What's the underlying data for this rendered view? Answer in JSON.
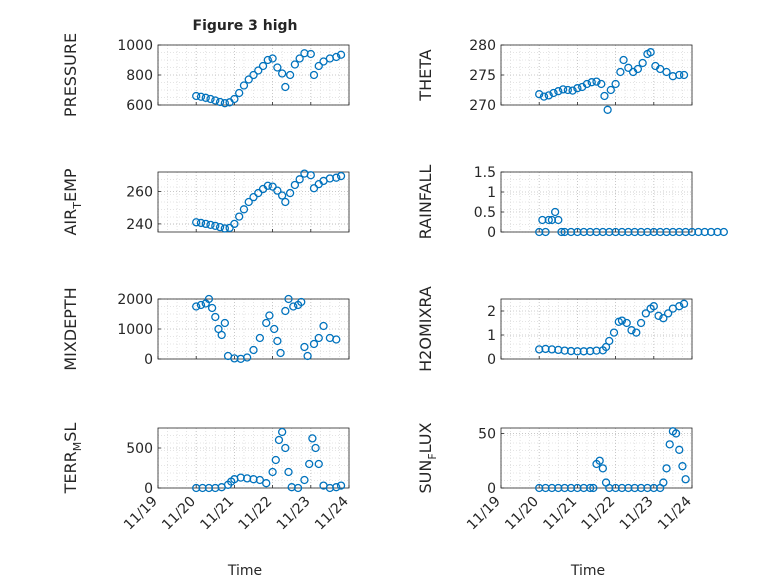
{
  "figure": {
    "title": "Figure 3 high",
    "xlabel": "Time",
    "xticklabels": [
      "11/19",
      "11/20",
      "11/21",
      "11/22",
      "11/23",
      "11/24"
    ],
    "marker_color": "#0072BD"
  },
  "chart_data": [
    {
      "type": "scatter",
      "name": "pressure",
      "title": "Figure 3 high",
      "ylabel": "PRESSURE",
      "xlabel": "",
      "x_range": [
        "11/19",
        "11/24"
      ],
      "ylim": [
        600,
        1000
      ],
      "yticks": [
        600,
        800,
        1000
      ],
      "yticklabels": [
        "600",
        "800",
        "1000"
      ],
      "grid": true,
      "points": [
        [
          "11/20 00:00",
          660
        ],
        [
          "11/20 03:00",
          655
        ],
        [
          "11/20 06:00",
          648
        ],
        [
          "11/20 09:00",
          640
        ],
        [
          "11/20 12:00",
          630
        ],
        [
          "11/20 15:00",
          620
        ],
        [
          "11/20 18:00",
          612
        ],
        [
          "11/20 21:00",
          618
        ],
        [
          "11/21 00:00",
          640
        ],
        [
          "11/21 03:00",
          680
        ],
        [
          "11/21 06:00",
          730
        ],
        [
          "11/21 09:00",
          770
        ],
        [
          "11/21 12:00",
          800
        ],
        [
          "11/21 15:00",
          830
        ],
        [
          "11/21 18:00",
          860
        ],
        [
          "11/21 21:00",
          900
        ],
        [
          "11/22 00:00",
          910
        ],
        [
          "11/22 03:00",
          850
        ],
        [
          "11/22 06:00",
          810
        ],
        [
          "11/22 08:00",
          720
        ],
        [
          "11/22 11:00",
          800
        ],
        [
          "11/22 14:00",
          870
        ],
        [
          "11/22 17:00",
          910
        ],
        [
          "11/22 20:00",
          945
        ],
        [
          "11/23 00:00",
          940
        ],
        [
          "11/23 02:00",
          800
        ],
        [
          "11/23 05:00",
          860
        ],
        [
          "11/23 08:00",
          890
        ],
        [
          "11/23 12:00",
          910
        ],
        [
          "11/23 16:00",
          920
        ],
        [
          "11/23 19:00",
          935
        ]
      ]
    },
    {
      "type": "scatter",
      "name": "theta",
      "ylabel": "THETA",
      "xlabel": "",
      "x_range": [
        "11/19",
        "11/24"
      ],
      "ylim": [
        270,
        280
      ],
      "yticks": [
        270,
        275,
        280
      ],
      "yticklabels": [
        "270",
        "275",
        "280"
      ],
      "grid": true,
      "points": [
        [
          "11/20 00:00",
          271.8
        ],
        [
          "11/20 03:00",
          271.4
        ],
        [
          "11/20 06:00",
          271.6
        ],
        [
          "11/20 09:00",
          272.0
        ],
        [
          "11/20 12:00",
          272.3
        ],
        [
          "11/20 15:00",
          272.6
        ],
        [
          "11/20 18:00",
          272.5
        ],
        [
          "11/20 21:00",
          272.4
        ],
        [
          "11/21 00:00",
          272.8
        ],
        [
          "11/21 03:00",
          273.0
        ],
        [
          "11/21 06:00",
          273.5
        ],
        [
          "11/21 09:00",
          273.8
        ],
        [
          "11/21 12:00",
          273.9
        ],
        [
          "11/21 15:00",
          273.5
        ],
        [
          "11/21 17:00",
          271.5
        ],
        [
          "11/21 19:00",
          269.2
        ],
        [
          "11/21 21:00",
          272.5
        ],
        [
          "11/22 00:00",
          273.5
        ],
        [
          "11/22 03:00",
          275.5
        ],
        [
          "11/22 05:00",
          277.5
        ],
        [
          "11/22 08:00",
          276.2
        ],
        [
          "11/22 11:00",
          275.5
        ],
        [
          "11/22 14:00",
          276.0
        ],
        [
          "11/22 17:00",
          277.0
        ],
        [
          "11/22 20:00",
          278.5
        ],
        [
          "11/22 22:00",
          278.8
        ],
        [
          "11/23 01:00",
          276.5
        ],
        [
          "11/23 04:00",
          276.0
        ],
        [
          "11/23 08:00",
          275.5
        ],
        [
          "11/23 12:00",
          274.8
        ],
        [
          "11/23 16:00",
          275.0
        ],
        [
          "11/23 19:00",
          275.0
        ]
      ]
    },
    {
      "type": "scatter",
      "name": "air-temp",
      "ylabel": "AIR_TEMP",
      "ylabel_display": {
        "main": "AIR",
        "sub": "T",
        "rest": "EMP"
      },
      "xlabel": "",
      "x_range": [
        "11/19",
        "11/24"
      ],
      "ylim": [
        235,
        272
      ],
      "yticks": [
        240,
        260
      ],
      "yticklabels": [
        "240",
        "260"
      ],
      "grid": true,
      "points": [
        [
          "11/20 00:00",
          241.0
        ],
        [
          "11/20 03:00",
          240.6
        ],
        [
          "11/20 06:00",
          240.0
        ],
        [
          "11/20 09:00",
          239.4
        ],
        [
          "11/20 12:00",
          238.8
        ],
        [
          "11/20 15:00",
          238.0
        ],
        [
          "11/20 18:00",
          237.2
        ],
        [
          "11/20 21:00",
          237.5
        ],
        [
          "11/21 00:00",
          240.0
        ],
        [
          "11/21 03:00",
          244.5
        ],
        [
          "11/21 06:00",
          249.0
        ],
        [
          "11/21 09:00",
          253.5
        ],
        [
          "11/21 12:00",
          256.5
        ],
        [
          "11/21 15:00",
          259.0
        ],
        [
          "11/21 18:00",
          261.5
        ],
        [
          "11/21 21:00",
          263.5
        ],
        [
          "11/22 00:00",
          263.0
        ],
        [
          "11/22 03:00",
          260.5
        ],
        [
          "11/22 06:00",
          257.5
        ],
        [
          "11/22 08:00",
          253.5
        ],
        [
          "11/22 11:00",
          259.0
        ],
        [
          "11/22 14:00",
          264.0
        ],
        [
          "11/22 17:00",
          267.5
        ],
        [
          "11/22 20:00",
          271.0
        ],
        [
          "11/23 00:00",
          270.0
        ],
        [
          "11/23 02:00",
          262.0
        ],
        [
          "11/23 05:00",
          264.5
        ],
        [
          "11/23 08:00",
          266.5
        ],
        [
          "11/23 12:00",
          268.0
        ],
        [
          "11/23 16:00",
          268.5
        ],
        [
          "11/23 19:00",
          269.5
        ]
      ]
    },
    {
      "type": "scatter",
      "name": "rainfall",
      "ylabel": "RAINFALL",
      "xlabel": "",
      "x_range": [
        "11/19",
        "11/24"
      ],
      "ylim": [
        0,
        1.5
      ],
      "yticks": [
        0,
        0.5,
        1,
        1.5
      ],
      "yticklabels": [
        "0",
        "0.5",
        "1",
        "1.5"
      ],
      "grid": true,
      "points": [
        [
          "11/20 00:00",
          0
        ],
        [
          "11/20 02:00",
          0.3
        ],
        [
          "11/20 04:00",
          0
        ],
        [
          "11/20 06:00",
          0.3
        ],
        [
          "11/20 08:00",
          0.3
        ],
        [
          "11/20 10:00",
          0.5
        ],
        [
          "11/20 12:00",
          0.3
        ],
        [
          "11/20 14:00",
          0
        ],
        [
          "11/20 16:00",
          0
        ],
        [
          "11/20 20:00",
          0
        ],
        [
          "11/21 00:00",
          0
        ],
        [
          "11/21 04:00",
          0
        ],
        [
          "11/21 08:00",
          0
        ],
        [
          "11/21 12:00",
          0
        ],
        [
          "11/21 16:00",
          0
        ],
        [
          "11/21 20:00",
          0
        ],
        [
          "11/22 00:00",
          0
        ],
        [
          "11/22 04:00",
          0
        ],
        [
          "11/22 08:00",
          0
        ],
        [
          "11/22 12:00",
          0
        ],
        [
          "11/22 16:00",
          0
        ],
        [
          "11/22 20:00",
          0
        ],
        [
          "11/23 00:00",
          0
        ],
        [
          "11/23 04:00",
          0
        ],
        [
          "11/23 08:00",
          0
        ],
        [
          "11/23 12:00",
          0
        ],
        [
          "11/23 16:00",
          0
        ],
        [
          "11/23 20:00",
          0
        ],
        [
          "11/24 00:00",
          0
        ],
        [
          "11/24 04:00",
          0
        ],
        [
          "11/24 08:00",
          0
        ],
        [
          "11/24 12:00",
          0
        ],
        [
          "11/24 16:00",
          0
        ],
        [
          "11/24 20:00",
          0
        ]
      ]
    },
    {
      "type": "scatter",
      "name": "mixdepth",
      "ylabel": "MIXDEPTH",
      "xlabel": "",
      "x_range": [
        "11/19",
        "11/24"
      ],
      "ylim": [
        0,
        2000
      ],
      "yticks": [
        0,
        1000,
        2000
      ],
      "yticklabels": [
        "0",
        "1000",
        "2000"
      ],
      "grid": true,
      "points": [
        [
          "11/20 00:00",
          1750
        ],
        [
          "11/20 03:00",
          1800
        ],
        [
          "11/20 06:00",
          1850
        ],
        [
          "11/20 08:00",
          2000
        ],
        [
          "11/20 10:00",
          1700
        ],
        [
          "11/20 12:00",
          1400
        ],
        [
          "11/20 14:00",
          1000
        ],
        [
          "11/20 16:00",
          800
        ],
        [
          "11/20 18:00",
          1200
        ],
        [
          "11/20 20:00",
          100
        ],
        [
          "11/21 00:00",
          20
        ],
        [
          "11/21 04:00",
          5
        ],
        [
          "11/21 08:00",
          50
        ],
        [
          "11/21 12:00",
          300
        ],
        [
          "11/21 16:00",
          700
        ],
        [
          "11/21 20:00",
          1200
        ],
        [
          "11/21 22:00",
          1450
        ],
        [
          "11/22 01:00",
          1000
        ],
        [
          "11/22 03:00",
          600
        ],
        [
          "11/22 05:00",
          200
        ],
        [
          "11/22 08:00",
          1600
        ],
        [
          "11/22 10:00",
          2000
        ],
        [
          "11/22 13:00",
          1750
        ],
        [
          "11/22 16:00",
          1800
        ],
        [
          "11/22 18:00",
          1900
        ],
        [
          "11/22 20:00",
          400
        ],
        [
          "11/22 22:00",
          100
        ],
        [
          "11/23 02:00",
          500
        ],
        [
          "11/23 05:00",
          700
        ],
        [
          "11/23 08:00",
          1100
        ],
        [
          "11/23 12:00",
          700
        ],
        [
          "11/23 16:00",
          650
        ]
      ]
    },
    {
      "type": "scatter",
      "name": "h2omixra",
      "ylabel": "H2OMIXRA",
      "xlabel": "",
      "x_range": [
        "11/19",
        "11/24"
      ],
      "ylim": [
        0,
        2.5
      ],
      "yticks": [
        0,
        1,
        2
      ],
      "yticklabels": [
        "0",
        "1",
        "2"
      ],
      "grid": true,
      "points": [
        [
          "11/20 00:00",
          0.4
        ],
        [
          "11/20 04:00",
          0.42
        ],
        [
          "11/20 08:00",
          0.4
        ],
        [
          "11/20 12:00",
          0.38
        ],
        [
          "11/20 16:00",
          0.35
        ],
        [
          "11/20 20:00",
          0.33
        ],
        [
          "11/21 00:00",
          0.32
        ],
        [
          "11/21 04:00",
          0.32
        ],
        [
          "11/21 08:00",
          0.33
        ],
        [
          "11/21 12:00",
          0.35
        ],
        [
          "11/21 16:00",
          0.36
        ],
        [
          "11/21 18:00",
          0.5
        ],
        [
          "11/21 20:00",
          0.75
        ],
        [
          "11/21 23:00",
          1.1
        ],
        [
          "11/22 02:00",
          1.55
        ],
        [
          "11/22 04:00",
          1.6
        ],
        [
          "11/22 07:00",
          1.5
        ],
        [
          "11/22 10:00",
          1.2
        ],
        [
          "11/22 13:00",
          1.1
        ],
        [
          "11/22 16:00",
          1.5
        ],
        [
          "11/22 19:00",
          1.9
        ],
        [
          "11/22 22:00",
          2.1
        ],
        [
          "11/23 00:00",
          2.2
        ],
        [
          "11/23 03:00",
          1.8
        ],
        [
          "11/23 06:00",
          1.7
        ],
        [
          "11/23 09:00",
          1.9
        ],
        [
          "11/23 12:00",
          2.1
        ],
        [
          "11/23 16:00",
          2.2
        ],
        [
          "11/23 19:00",
          2.3
        ]
      ]
    },
    {
      "type": "scatter",
      "name": "terr-msl",
      "ylabel": "TERR_MSL",
      "ylabel_display": {
        "main": "TERR",
        "sub": "M",
        "rest": "SL"
      },
      "xlabel": "Time",
      "x_range": [
        "11/19",
        "11/24"
      ],
      "ylim": [
        0,
        750
      ],
      "yticks": [
        0,
        500
      ],
      "yticklabels": [
        "0",
        "500"
      ],
      "grid": true,
      "points": [
        [
          "11/20 00:00",
          0
        ],
        [
          "11/20 04:00",
          0
        ],
        [
          "11/20 08:00",
          0
        ],
        [
          "11/20 12:00",
          0
        ],
        [
          "11/20 16:00",
          10
        ],
        [
          "11/20 20:00",
          40
        ],
        [
          "11/20 22:00",
          80
        ],
        [
          "11/21 00:00",
          110
        ],
        [
          "11/21 04:00",
          130
        ],
        [
          "11/21 08:00",
          120
        ],
        [
          "11/21 12:00",
          110
        ],
        [
          "11/21 16:00",
          100
        ],
        [
          "11/21 20:00",
          60
        ],
        [
          "11/22 00:00",
          200
        ],
        [
          "11/22 02:00",
          350
        ],
        [
          "11/22 04:00",
          600
        ],
        [
          "11/22 06:00",
          700
        ],
        [
          "11/22 08:00",
          500
        ],
        [
          "11/22 10:00",
          200
        ],
        [
          "11/22 12:00",
          10
        ],
        [
          "11/22 16:00",
          0
        ],
        [
          "11/22 20:00",
          100
        ],
        [
          "11/22 23:00",
          300
        ],
        [
          "11/23 01:00",
          620
        ],
        [
          "11/23 03:00",
          500
        ],
        [
          "11/23 05:00",
          300
        ],
        [
          "11/23 08:00",
          30
        ],
        [
          "11/23 12:00",
          0
        ],
        [
          "11/23 16:00",
          10
        ],
        [
          "11/23 19:00",
          30
        ]
      ]
    },
    {
      "type": "scatter",
      "name": "sun-flux",
      "ylabel": "SUN_FLUX",
      "ylabel_display": {
        "main": "SUN",
        "sub": "F",
        "rest": "LUX"
      },
      "xlabel": "Time",
      "x_range": [
        "11/19",
        "11/24"
      ],
      "ylim": [
        0,
        55
      ],
      "yticks": [
        0,
        50
      ],
      "yticklabels": [
        "0",
        "50"
      ],
      "grid": true,
      "points": [
        [
          "11/20 00:00",
          0
        ],
        [
          "11/20 04:00",
          0
        ],
        [
          "11/20 08:00",
          0
        ],
        [
          "11/20 12:00",
          0
        ],
        [
          "11/20 16:00",
          0
        ],
        [
          "11/20 20:00",
          0
        ],
        [
          "11/21 00:00",
          0
        ],
        [
          "11/21 04:00",
          0
        ],
        [
          "11/21 08:00",
          0
        ],
        [
          "11/21 10:00",
          0
        ],
        [
          "11/21 12:00",
          22
        ],
        [
          "11/21 14:00",
          25
        ],
        [
          "11/21 16:00",
          18
        ],
        [
          "11/21 18:00",
          5
        ],
        [
          "11/21 20:00",
          0
        ],
        [
          "11/22 00:00",
          0
        ],
        [
          "11/22 04:00",
          0
        ],
        [
          "11/22 08:00",
          0
        ],
        [
          "11/22 12:00",
          0
        ],
        [
          "11/22 16:00",
          0
        ],
        [
          "11/22 20:00",
          0
        ],
        [
          "11/23 00:00",
          0
        ],
        [
          "11/23 04:00",
          0
        ],
        [
          "11/23 06:00",
          5
        ],
        [
          "11/23 08:00",
          18
        ],
        [
          "11/23 10:00",
          40
        ],
        [
          "11/23 12:00",
          52
        ],
        [
          "11/23 14:00",
          50
        ],
        [
          "11/23 16:00",
          35
        ],
        [
          "11/23 18:00",
          20
        ],
        [
          "11/23 20:00",
          8
        ]
      ]
    }
  ]
}
